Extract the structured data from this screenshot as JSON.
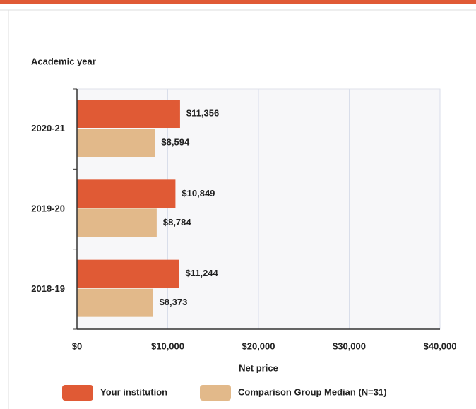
{
  "chart_data": {
    "type": "hbar",
    "ylabel": "Academic year",
    "xlabel": "Net price",
    "categories": [
      "2020-21",
      "2019-20",
      "2018-19"
    ],
    "series": [
      {
        "name": "Your institution",
        "color": "#e05a35",
        "values": [
          11356,
          10849,
          11244
        ],
        "value_labels": [
          "$11,356",
          "$10,849",
          "$11,244"
        ]
      },
      {
        "name": "Comparison Group Median (N=31)",
        "color": "#e2b98a",
        "values": [
          8594,
          8784,
          8373
        ],
        "value_labels": [
          "$8,594",
          "$8,784",
          "$8,373"
        ]
      }
    ],
    "xlim": [
      0,
      40000
    ],
    "xticks": [
      {
        "value": 0,
        "label": "$0"
      },
      {
        "value": 10000,
        "label": "$10,000"
      },
      {
        "value": 20000,
        "label": "$20,000"
      },
      {
        "value": 30000,
        "label": "$30,000"
      },
      {
        "value": 40000,
        "label": "$40,000"
      }
    ],
    "grid": true,
    "legend": "bottom"
  }
}
